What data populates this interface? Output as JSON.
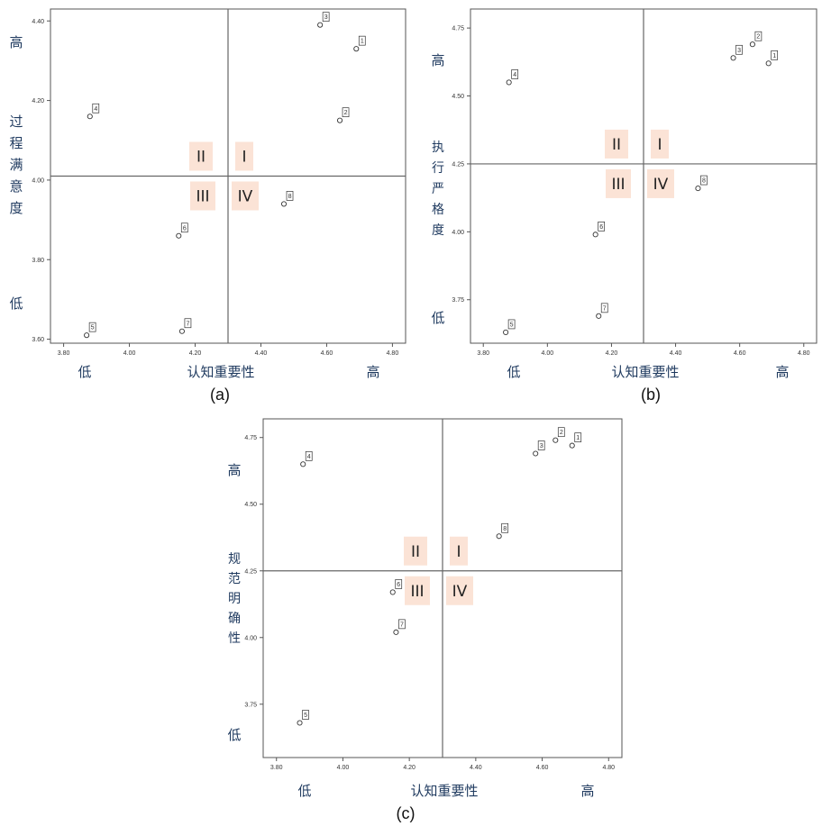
{
  "chart_data": [
    {
      "type": "scatter",
      "caption": "(a)",
      "xlabel": "认知重要性",
      "ylabel": "过程满意度",
      "x_low": "低",
      "x_high": "高",
      "y_low": "低",
      "y_high": "高",
      "xlim": [
        3.76,
        4.84
      ],
      "ylim": [
        3.59,
        4.43
      ],
      "xticks": [
        "3.80",
        "4.00",
        "4.20",
        "4.40",
        "4.60",
        "4.80"
      ],
      "yticks": [
        "3.60",
        "3.80",
        "4.00",
        "4.20",
        "4.40"
      ],
      "divider": {
        "x": 4.3,
        "y": 4.01
      },
      "quadrants": [
        "I",
        "II",
        "III",
        "IV"
      ],
      "points": [
        {
          "label": "1",
          "x": 4.69,
          "y": 4.33
        },
        {
          "label": "2",
          "x": 4.64,
          "y": 4.15
        },
        {
          "label": "3",
          "x": 4.58,
          "y": 4.39
        },
        {
          "label": "4",
          "x": 3.88,
          "y": 4.16
        },
        {
          "label": "5",
          "x": 3.87,
          "y": 3.61
        },
        {
          "label": "6",
          "x": 4.15,
          "y": 3.86
        },
        {
          "label": "7",
          "x": 4.16,
          "y": 3.62
        },
        {
          "label": "8",
          "x": 4.47,
          "y": 3.94
        }
      ]
    },
    {
      "type": "scatter",
      "caption": "(b)",
      "xlabel": "认知重要性",
      "ylabel": "执行严格度",
      "x_low": "低",
      "x_high": "高",
      "y_low": "低",
      "y_high": "高",
      "xlim": [
        3.76,
        4.84
      ],
      "ylim": [
        3.59,
        4.82
      ],
      "xticks": [
        "3.80",
        "4.00",
        "4.20",
        "4.40",
        "4.60",
        "4.80"
      ],
      "yticks": [
        "3.75",
        "4.00",
        "4.25",
        "4.50",
        "4.75"
      ],
      "divider": {
        "x": 4.3,
        "y": 4.25
      },
      "quadrants": [
        "I",
        "II",
        "III",
        "IV"
      ],
      "points": [
        {
          "label": "1",
          "x": 4.69,
          "y": 4.62
        },
        {
          "label": "2",
          "x": 4.64,
          "y": 4.69
        },
        {
          "label": "3",
          "x": 4.58,
          "y": 4.64
        },
        {
          "label": "4",
          "x": 3.88,
          "y": 4.55
        },
        {
          "label": "5",
          "x": 3.87,
          "y": 3.63
        },
        {
          "label": "6",
          "x": 4.15,
          "y": 3.99
        },
        {
          "label": "7",
          "x": 4.16,
          "y": 3.69
        },
        {
          "label": "8",
          "x": 4.47,
          "y": 4.16
        }
      ]
    },
    {
      "type": "scatter",
      "caption": "(c)",
      "xlabel": "认知重要性",
      "ylabel": "规范明确性",
      "x_low": "低",
      "x_high": "高",
      "y_low": "低",
      "y_high": "高",
      "xlim": [
        3.76,
        4.84
      ],
      "ylim": [
        3.55,
        4.82
      ],
      "xticks": [
        "3.80",
        "4.00",
        "4.20",
        "4.40",
        "4.60",
        "4.80"
      ],
      "yticks": [
        "3.75",
        "4.00",
        "4.25",
        "4.50",
        "4.75"
      ],
      "divider": {
        "x": 4.3,
        "y": 4.25
      },
      "quadrants": [
        "I",
        "II",
        "III",
        "IV"
      ],
      "points": [
        {
          "label": "1",
          "x": 4.69,
          "y": 4.72
        },
        {
          "label": "2",
          "x": 4.64,
          "y": 4.74
        },
        {
          "label": "3",
          "x": 4.58,
          "y": 4.69
        },
        {
          "label": "4",
          "x": 3.88,
          "y": 4.65
        },
        {
          "label": "5",
          "x": 3.87,
          "y": 3.68
        },
        {
          "label": "6",
          "x": 4.15,
          "y": 4.17
        },
        {
          "label": "7",
          "x": 4.16,
          "y": 4.02
        },
        {
          "label": "8",
          "x": 4.47,
          "y": 4.38
        }
      ]
    }
  ]
}
